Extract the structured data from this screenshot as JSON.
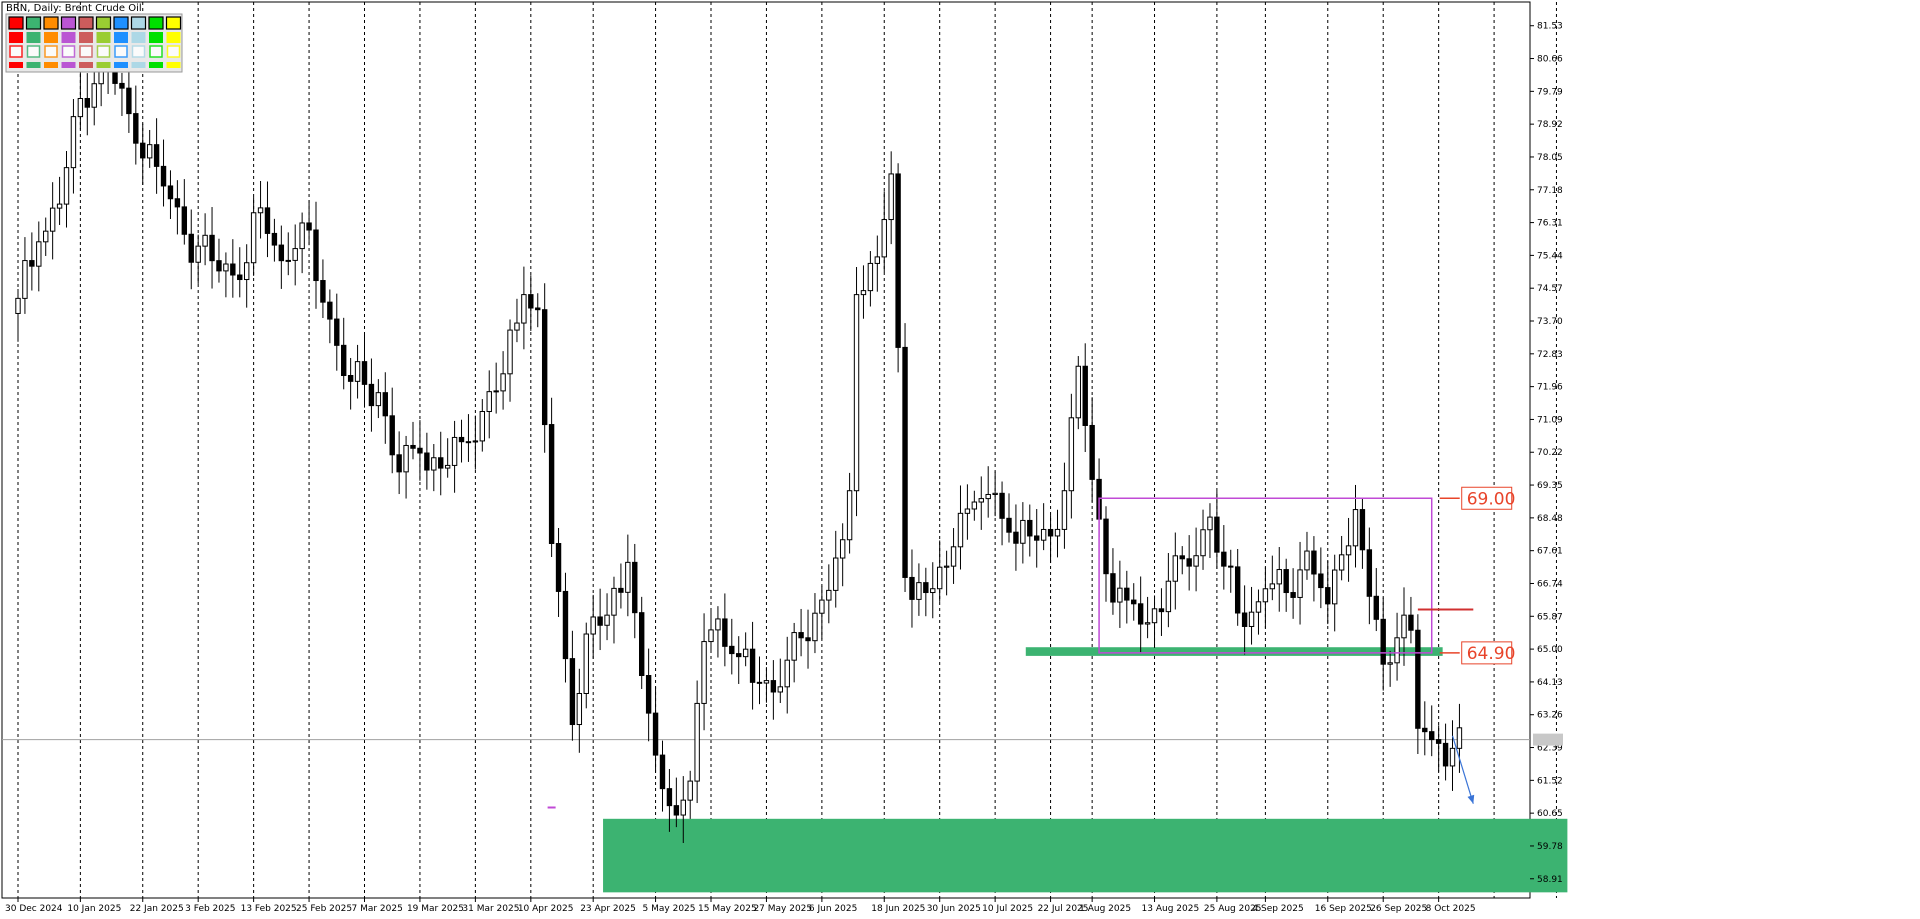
{
  "header": {
    "title": "BRN, Daily:  Brent Crude Oil"
  },
  "colors": {
    "bull_fill": "#ffffff",
    "bear_fill": "#000000",
    "candle_outline": "#000000",
    "zone_green": "#3cb371",
    "range_box": "#c04ad6",
    "label_red": "#e8442a",
    "arrow_blue": "#3a74d6",
    "grid": "#000000",
    "current_price_line": "#a0a0a0",
    "palette": [
      "#ff0000",
      "#3cb371",
      "#ff8c00",
      "#ba55d3",
      "#cd5c5c",
      "#9acd32",
      "#1e90ff",
      "#add8e6",
      "#00e000",
      "#ffff00"
    ]
  },
  "chart_data": {
    "type": "candlestick",
    "title": "BRN, Daily:  Brent Crude Oil",
    "ylim": [
      58.4,
      82.0
    ],
    "y_ticks": [
      81.53,
      80.66,
      79.79,
      78.92,
      78.05,
      77.18,
      76.31,
      75.44,
      74.57,
      73.7,
      72.83,
      71.96,
      71.09,
      70.22,
      69.35,
      68.48,
      67.61,
      66.74,
      65.87,
      65.0,
      64.13,
      63.26,
      62.39,
      61.52,
      60.65,
      59.78,
      58.91
    ],
    "current_price": 62.6,
    "x_tick_labels": [
      "30 Dec 2024",
      "10 Jan 2025",
      "22 Jan 2025",
      "3 Feb 2025",
      "13 Feb 2025",
      "25 Feb 2025",
      "7 Mar 2025",
      "19 Mar 2025",
      "31 Mar 2025",
      "10 Apr 2025",
      "23 Apr 2025",
      "5 May 2025",
      "15 May 2025",
      "27 May 2025",
      "6 Jun 2025",
      "18 Jun 2025",
      "30 Jun 2025",
      "10 Jul 2025",
      "22 Jul 2025",
      "1 Aug 2025",
      "13 Aug 2025",
      "25 Aug 2025",
      "4 Sep 2025",
      "16 Sep 2025",
      "26 Sep 2025",
      "8 Oct 2025"
    ],
    "x_tick_index": [
      0,
      9,
      18,
      26,
      34,
      42,
      50,
      58,
      66,
      74,
      83,
      92,
      100,
      108,
      116,
      125,
      133,
      141,
      149,
      155,
      164,
      173,
      180,
      189,
      197,
      205
    ],
    "bar_count": 209,
    "anchors": [
      [
        0,
        74.3
      ],
      [
        3,
        75.8
      ],
      [
        6,
        76.8
      ],
      [
        9,
        79.6
      ],
      [
        12,
        80.6
      ],
      [
        14,
        80.0
      ],
      [
        16,
        79.2
      ],
      [
        20,
        77.8
      ],
      [
        24,
        76.0
      ],
      [
        28,
        75.3
      ],
      [
        32,
        74.8
      ],
      [
        35,
        76.7
      ],
      [
        38,
        75.3
      ],
      [
        41,
        76.3
      ],
      [
        44,
        74.2
      ],
      [
        48,
        72.1
      ],
      [
        52,
        71.8
      ],
      [
        55,
        69.7
      ],
      [
        58,
        70.2
      ],
      [
        61,
        69.8
      ],
      [
        64,
        70.5
      ],
      [
        67,
        71.3
      ],
      [
        70,
        72.3
      ],
      [
        73,
        74.4
      ],
      [
        75,
        74.0
      ],
      [
        77,
        67.8
      ],
      [
        80,
        63.0
      ],
      [
        82,
        65.4
      ],
      [
        85,
        65.9
      ],
      [
        88,
        67.3
      ],
      [
        90,
        64.3
      ],
      [
        93,
        61.3
      ],
      [
        95,
        60.6
      ],
      [
        97,
        61.5
      ],
      [
        99,
        65.2
      ],
      [
        101,
        65.8
      ],
      [
        104,
        64.8
      ],
      [
        107,
        64.1
      ],
      [
        110,
        64.0
      ],
      [
        113,
        65.3
      ],
      [
        116,
        66.3
      ],
      [
        119,
        67.9
      ],
      [
        120,
        69.2
      ],
      [
        121,
        74.4
      ],
      [
        124,
        75.4
      ],
      [
        126,
        77.6
      ],
      [
        127,
        73.0
      ],
      [
        128,
        66.9
      ],
      [
        131,
        66.5
      ],
      [
        134,
        67.2
      ],
      [
        136,
        68.6
      ],
      [
        138,
        68.9
      ],
      [
        140,
        69.1
      ],
      [
        143,
        68.1
      ],
      [
        146,
        68.0
      ],
      [
        149,
        68.0
      ],
      [
        151,
        69.2
      ],
      [
        153,
        72.5
      ],
      [
        155,
        69.5
      ],
      [
        157,
        67.0
      ],
      [
        160,
        66.3
      ],
      [
        163,
        65.7
      ],
      [
        166,
        66.8
      ],
      [
        169,
        67.2
      ],
      [
        172,
        68.5
      ],
      [
        174,
        67.2
      ],
      [
        177,
        65.6
      ],
      [
        180,
        66.6
      ],
      [
        183,
        66.5
      ],
      [
        186,
        67.6
      ],
      [
        189,
        66.2
      ],
      [
        191,
        67.5
      ],
      [
        193,
        68.7
      ],
      [
        195,
        66.4
      ],
      [
        197,
        64.6
      ],
      [
        199,
        65.3
      ],
      [
        200,
        65.9
      ],
      [
        201,
        65.5
      ],
      [
        202,
        62.9
      ],
      [
        204,
        62.6
      ],
      [
        205,
        62.5
      ]
    ],
    "annotations": {
      "range_box": {
        "from_bar": 156,
        "to_bar": 204,
        "top": 69.0,
        "bottom": 64.9
      },
      "level_labels": [
        "69.00",
        "64.90"
      ],
      "resistance_zone": {
        "from_bar": 146,
        "to_bar": 205,
        "top": 65.05,
        "bottom": 64.82
      },
      "support_zone": {
        "from_bar": 85,
        "to_bar": 223,
        "top": 60.5,
        "bottom": 58.55
      },
      "short_red_level": {
        "from_bar": 202,
        "to_bar": 210,
        "price": 66.05
      },
      "arrow": {
        "from_bar": 207,
        "from_price": 62.7,
        "to_bar": 210,
        "to_price": 60.9
      }
    }
  }
}
